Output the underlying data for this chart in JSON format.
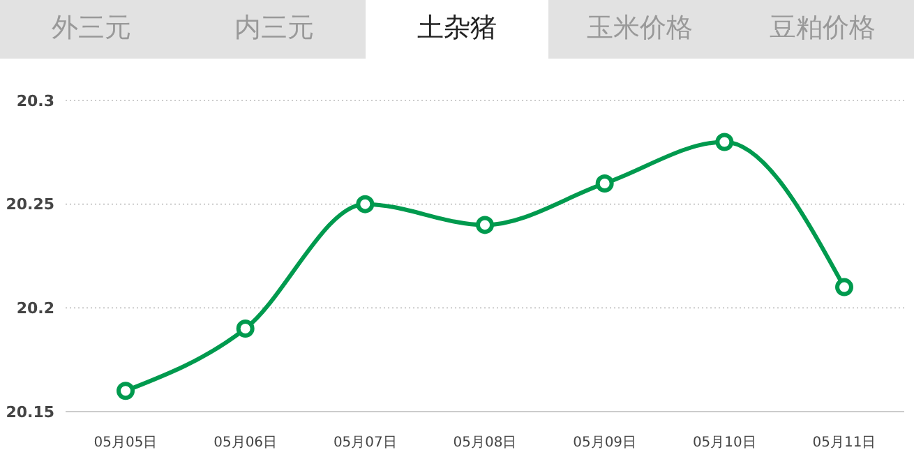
{
  "chart_data": {
    "type": "line",
    "title": "土杂猪",
    "annotations": [
      "外三元",
      "内三元",
      "玉米价格",
      "豆粕价格"
    ],
    "categories": [
      "05月05日",
      "05月06日",
      "05月07日",
      "05月08日",
      "05月09日",
      "05月10日",
      "05月11日"
    ],
    "series": [
      {
        "color": "#009a4e",
        "values": [
          20.16,
          20.19,
          20.25,
          20.24,
          20.26,
          20.28,
          20.21
        ]
      }
    ],
    "ylim": [
      20.15,
      20.3
    ],
    "yticks": [
      20.15,
      20.2,
      20.25,
      20.3
    ],
    "grid": "y",
    "legend": false,
    "marker": "circle",
    "line_style": "solid"
  }
}
